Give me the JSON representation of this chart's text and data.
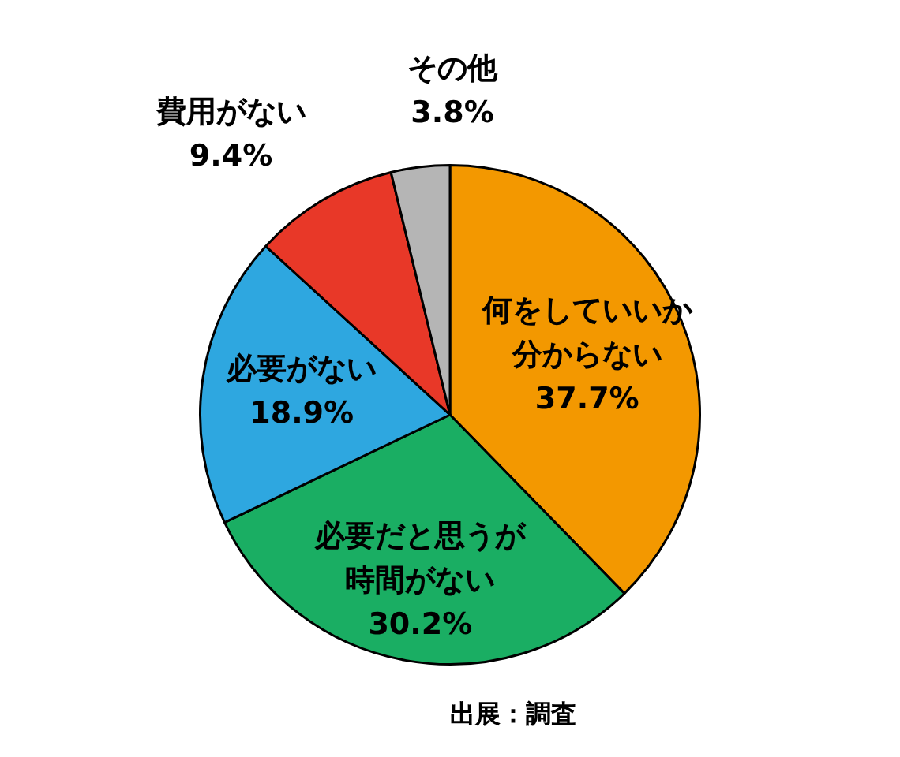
{
  "chart_data": {
    "type": "pie",
    "categories": [
      "何をしていいか分からない",
      "必要だと思うが時間がない",
      "必要がない",
      "費用がない",
      "その他"
    ],
    "values": [
      37.7,
      30.2,
      18.9,
      9.4,
      3.8
    ],
    "value_labels": [
      "37.7%",
      "30.2%",
      "18.9%",
      "9.4%",
      "3.8%"
    ],
    "colors": [
      "#f39800",
      "#1aae63",
      "#2ea7e0",
      "#e83828",
      "#b5b5b5"
    ],
    "legend": false,
    "annotations": [
      "出展：調査"
    ]
  }
}
